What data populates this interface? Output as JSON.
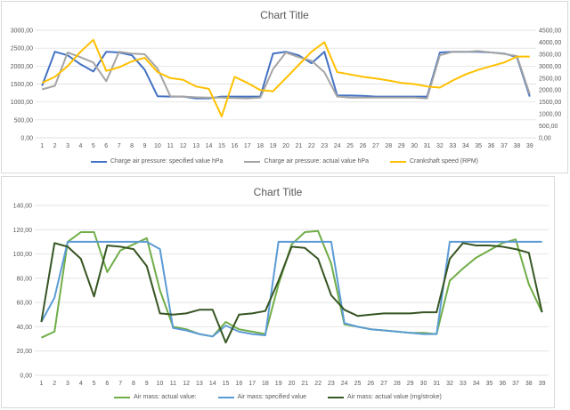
{
  "chart_data": [
    {
      "type": "line",
      "title": "Chart Title",
      "x": [
        1,
        2,
        3,
        4,
        5,
        6,
        7,
        8,
        9,
        10,
        11,
        12,
        13,
        14,
        15,
        16,
        17,
        18,
        19,
        20,
        21,
        22,
        23,
        24,
        25,
        26,
        27,
        28,
        29,
        30,
        31,
        32,
        33,
        34,
        35,
        36,
        37,
        38,
        39
      ],
      "y_ticks": [
        "0,00",
        "500,00",
        "1000,00",
        "1500,00",
        "2000,00",
        "2500,00",
        "3000,00"
      ],
      "y2_ticks": [
        "0,00",
        "500,00",
        "1000,00",
        "1500,00",
        "2000,00",
        "2500,00",
        "3000,00",
        "3500,00",
        "4000,00",
        "4500,00"
      ],
      "ylim": [
        0,
        3000
      ],
      "y2lim": [
        0,
        4500
      ],
      "grid": true,
      "legend_position": "bottom",
      "series": [
        {
          "name": "Charge air pressure: specified value  hPa",
          "axis": "left",
          "color": "#4472c4",
          "values": [
            1450,
            2400,
            2300,
            2050,
            1850,
            2400,
            2380,
            2300,
            1900,
            1160,
            1150,
            1150,
            1100,
            1100,
            1150,
            1150,
            1150,
            1150,
            2350,
            2400,
            2300,
            2080,
            2400,
            1180,
            1180,
            1170,
            1150,
            1150,
            1150,
            1150,
            1150,
            2380,
            2400,
            2400,
            2400,
            2380,
            2350,
            2250,
            1150
          ]
        },
        {
          "name": "Charge air pressure: actual value  hPa",
          "axis": "left",
          "color": "#a5a5a5",
          "values": [
            1350,
            1450,
            2380,
            2250,
            2100,
            1580,
            2400,
            2350,
            2330,
            1930,
            1160,
            1150,
            1130,
            1120,
            1120,
            1110,
            1100,
            1120,
            1920,
            2380,
            2250,
            2150,
            1830,
            1150,
            1120,
            1120,
            1120,
            1120,
            1120,
            1120,
            1100,
            2300,
            2400,
            2400,
            2420,
            2380,
            2340,
            2280,
            1220
          ]
        },
        {
          "name": "Crankshaft speed (RPM)",
          "axis": "right",
          "color": "#ffc000",
          "values": [
            2300,
            2550,
            3000,
            3600,
            4100,
            2800,
            2950,
            3200,
            3350,
            2750,
            2500,
            2430,
            2150,
            2050,
            900,
            2550,
            2300,
            2000,
            1950,
            2500,
            3050,
            3600,
            4000,
            2750,
            2650,
            2550,
            2480,
            2400,
            2300,
            2250,
            2150,
            2100,
            2400,
            2650,
            2850,
            3000,
            3150,
            3400,
            3400
          ]
        }
      ]
    },
    {
      "type": "line",
      "title": "Chart Title",
      "x": [
        1,
        2,
        3,
        4,
        5,
        6,
        7,
        8,
        9,
        10,
        11,
        12,
        13,
        14,
        15,
        16,
        17,
        18,
        19,
        20,
        21,
        22,
        23,
        24,
        25,
        26,
        27,
        28,
        29,
        30,
        31,
        32,
        33,
        34,
        35,
        36,
        37,
        38,
        39
      ],
      "y_ticks": [
        "0,00",
        "20,00",
        "40,00",
        "60,00",
        "80,00",
        "100,00",
        "120,00",
        "140,00"
      ],
      "ylim": [
        0,
        140
      ],
      "grid": true,
      "legend_position": "bottom",
      "series": [
        {
          "name": "Air mass: actual value:",
          "color": "#70ad47",
          "values": [
            31,
            36,
            110,
            118,
            118,
            85,
            103,
            108,
            113,
            70,
            40,
            38,
            34,
            32,
            44,
            38,
            36,
            34,
            75,
            108,
            118,
            119,
            92,
            42,
            40,
            38,
            37,
            36,
            35,
            35,
            34,
            78,
            88,
            97,
            103,
            109,
            112,
            75,
            52
          ]
        },
        {
          "name": "Air mass: specified value",
          "color": "#5b9bd5",
          "values": [
            44,
            64,
            110,
            110,
            110,
            110,
            110,
            110,
            110,
            104,
            39,
            37,
            34,
            32,
            41,
            36,
            34,
            33,
            110,
            110,
            110,
            110,
            110,
            43,
            40,
            38,
            37,
            36,
            35,
            34,
            34,
            110,
            110,
            110,
            110,
            110,
            110,
            110,
            110
          ]
        },
        {
          "name": "Air mass: actual value (mg/stroke)",
          "color": "#375623",
          "values": [
            44,
            109,
            106,
            96,
            65,
            107,
            106,
            104,
            90,
            51,
            50,
            51,
            54,
            54,
            27,
            50,
            51,
            53,
            78,
            106,
            105,
            96,
            66,
            54,
            49,
            50,
            51,
            51,
            51,
            52,
            52,
            96,
            109,
            107,
            107,
            106,
            104,
            101,
            52
          ]
        }
      ]
    }
  ]
}
